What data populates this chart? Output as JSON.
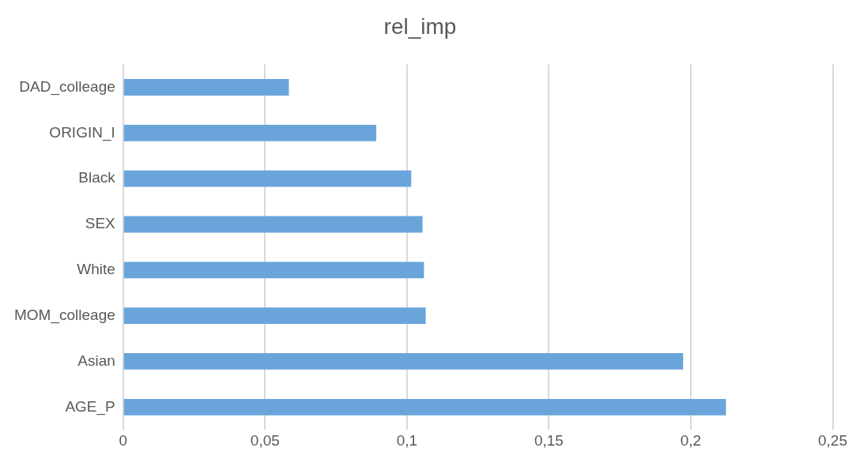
{
  "chart_data": {
    "type": "bar",
    "orientation": "horizontal",
    "title": "rel_imp",
    "categories": [
      "DAD_colleage",
      "ORIGIN_I",
      "Black",
      "SEX",
      "White",
      "MOM_colleage",
      "Asian",
      "AGE_P"
    ],
    "values": [
      0.0584,
      0.0892,
      0.1015,
      0.1055,
      0.106,
      0.1066,
      0.1973,
      0.2124
    ],
    "color": "#69a5db",
    "xlim": [
      0,
      0.25
    ],
    "xticks": [
      0,
      {
        "value": 0.05,
        "label": "0,05"
      },
      {
        "value": 0.1,
        "label": "0,1"
      },
      {
        "value": 0.15,
        "label": "0,15"
      },
      {
        "value": 0.2,
        "label": "0,2"
      },
      {
        "value": 0.25,
        "label": "0,25"
      }
    ],
    "grid": "x"
  }
}
